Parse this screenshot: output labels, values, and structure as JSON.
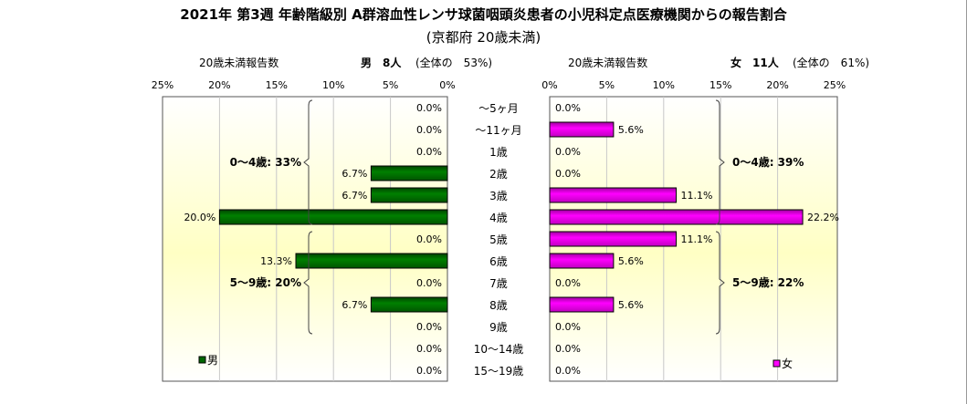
{
  "chart_data": {
    "type": "bar",
    "title": "2021年 第3週 年齢階級別 A群溶血性レンサ球菌咽頭炎患者の小児科定点医療機関からの報告割合",
    "subtitle": "(京都府 20歳未満)",
    "categories": [
      "～5ヶ月",
      "～11ヶ月",
      "1歳",
      "2歳",
      "3歳",
      "4歳",
      "5歳",
      "6歳",
      "7歳",
      "8歳",
      "9歳",
      "10～14歳",
      "15～19歳"
    ],
    "axis_ticks_left": [
      "25%",
      "20%",
      "15%",
      "10%",
      "5%",
      "0%"
    ],
    "axis_ticks_right": [
      "0%",
      "5%",
      "10%",
      "15%",
      "20%",
      "25%"
    ],
    "xlim": [
      0,
      25
    ],
    "series": [
      {
        "name": "男",
        "side": "left",
        "header_label": "20歳未満報告数",
        "header": "男　8人",
        "header_pct": "(全体の　53%)",
        "color": "#006600",
        "values": [
          0,
          0,
          0,
          6.7,
          6.7,
          20.0,
          0,
          13.3,
          0,
          6.7,
          0,
          0,
          0
        ],
        "labels": [
          "0.0%",
          "0.0%",
          "0.0%",
          "6.7%",
          "6.7%",
          "20.0%",
          "0.0%",
          "13.3%",
          "0.0%",
          "6.7%",
          "0.0%",
          "0.0%",
          "0.0%"
        ],
        "groups": [
          {
            "label": "0～4歳: 33%",
            "from": 0,
            "to": 5
          },
          {
            "label": "5～9歳: 20%",
            "from": 6,
            "to": 10
          }
        ]
      },
      {
        "name": "女",
        "side": "right",
        "header_label": "20歳未満報告数",
        "header": "女　11人",
        "header_pct": "(全体の　61%)",
        "color": "#ff00ff",
        "values": [
          0,
          5.6,
          0,
          0,
          11.1,
          22.2,
          11.1,
          5.6,
          0,
          5.6,
          0,
          0,
          0
        ],
        "labels": [
          "0.0%",
          "5.6%",
          "0.0%",
          "0.0%",
          "11.1%",
          "22.2%",
          "11.1%",
          "5.6%",
          "0.0%",
          "5.6%",
          "0.0%",
          "0.0%",
          "0.0%"
        ],
        "groups": [
          {
            "label": "0～4歳: 39%",
            "from": 0,
            "to": 5
          },
          {
            "label": "5～9歳: 22%",
            "from": 6,
            "to": 10
          }
        ]
      }
    ]
  }
}
